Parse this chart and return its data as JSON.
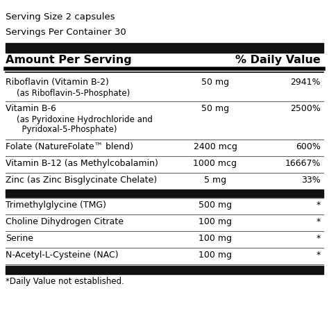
{
  "serving_size": "Serving Size 2 capsules",
  "servings_per": "Servings Per Container 30",
  "header_left": "Amount Per Serving",
  "header_right": "% Daily Value",
  "rows": [
    {
      "name": "Riboflavin (Vitamin B-2)",
      "sub": "(as Riboflavin-5-Phosphate)",
      "amount": "50 mg",
      "dv": "2941%",
      "dark_bar": false
    },
    {
      "name": "Vitamin B-6",
      "sub2a": "(as Pyridoxine Hydrochloride and",
      "sub2b": "  Pyridoxal-5-Phosphate)",
      "amount": "50 mg",
      "dv": "2500%",
      "dark_bar": false
    },
    {
      "name": "Folate (NatureFolate™ blend)",
      "sub": "",
      "amount": "2400 mcg",
      "dv": "600%",
      "dark_bar": false
    },
    {
      "name": "Vitamin B-12 (as Methylcobalamin)",
      "sub": "",
      "amount": "1000 mcg",
      "dv": "16667%",
      "dark_bar": false
    },
    {
      "name": "Zinc (as Zinc Bisglycinate Chelate)",
      "sub": "",
      "amount": "5 mg",
      "dv": "33%",
      "dark_bar": false
    },
    {
      "name": "DARK_BAR",
      "dark_bar": true
    },
    {
      "name": "Trimethylglycine (TMG)",
      "sub": "",
      "amount": "500 mg",
      "dv": "*",
      "dark_bar": false
    },
    {
      "name": "Choline Dihydrogen Citrate",
      "sub": "",
      "amount": "100 mg",
      "dv": "*",
      "dark_bar": false
    },
    {
      "name": "Serine",
      "sub": "",
      "amount": "100 mg",
      "dv": "*",
      "dark_bar": false
    },
    {
      "name": "N-Acetyl-L-Cysteine (NAC)",
      "sub": "",
      "amount": "100 mg",
      "dv": "*",
      "dark_bar": false
    }
  ],
  "footnote": "*Daily Value not established.",
  "bg_color": "#ffffff",
  "text_color": "#000000",
  "dark_bar_color": "#111111"
}
